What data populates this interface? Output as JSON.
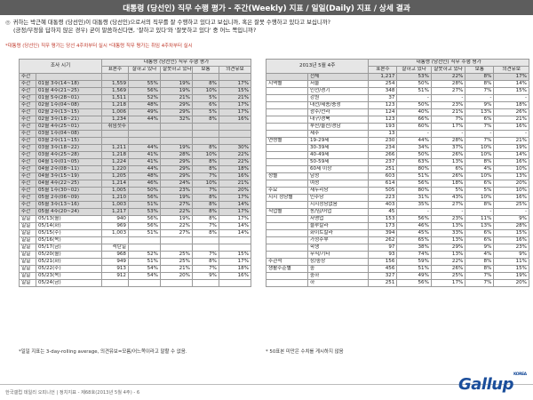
{
  "header": {
    "title": "대통령 (당선인) 직무 수행 평가 - 주간(Weekly) 지표 / 일일(Daily) 지표 / 상세 결과"
  },
  "question": {
    "mark": "◎",
    "line1": "귀하는 박근혜 대통령 (당선인)이 대통령 (당선인)으로서의 직무를 잘 수행하고 있다고 보십니까, 혹은 잘못 수행하고 있다고 보십니까?",
    "line2": "(긍정/부정을 답하지 않은 경우) 굳이 말씀하신다면, '잘하고 있다'와 '잘못하고 있다' 중 어느 쪽입니까?"
  },
  "notes": {
    "line1": "*대통령 (당선인) 직무 평가는 당선 4주차부터 실시  *대통령 직무 평가는 취임 4주차부터 실시"
  },
  "left_table": {
    "group_header": "대통령 (당선인) 직무 수행 평가",
    "col_period": "조사 시기",
    "col_n": "표본수",
    "col_good": "잘하고 있다",
    "col_bad": "잘못하고 있다",
    "col_normal": "보통",
    "col_dk": "의견유보",
    "rows": [
      {
        "t": "주간",
        "d": "",
        "n": "",
        "a": "",
        "b": "",
        "c": "",
        "e": "",
        "g": true
      },
      {
        "t": "주간",
        "d": "01월 3주(14~18)",
        "n": "1,559",
        "a": "55%",
        "b": "19%",
        "c": "8%",
        "e": "17%",
        "g": true
      },
      {
        "t": "주간",
        "d": "01월 4주(21~25)",
        "n": "1,569",
        "a": "56%",
        "b": "19%",
        "c": "10%",
        "e": "15%",
        "g": true
      },
      {
        "t": "주간",
        "d": "01월 5주(28~01)",
        "n": "1,511",
        "a": "52%",
        "b": "21%",
        "c": "5%",
        "e": "21%",
        "g": true
      },
      {
        "t": "주간",
        "d": "02월 1주(04~08)",
        "n": "1,218",
        "a": "48%",
        "b": "29%",
        "c": "6%",
        "e": "17%",
        "g": true
      },
      {
        "t": "주간",
        "d": "02월 2주(13~15)",
        "n": "1,006",
        "a": "49%",
        "b": "29%",
        "c": "5%",
        "e": "17%",
        "g": true
      },
      {
        "t": "주간",
        "d": "02월 3주(18~21)",
        "n": "1,234",
        "a": "44%",
        "b": "32%",
        "c": "8%",
        "e": "16%",
        "g": true
      },
      {
        "t": "주간",
        "d": "02월 4주(25~01)",
        "n": "취임첫주",
        "a": "",
        "b": "",
        "c": "",
        "e": "",
        "g": true
      },
      {
        "t": "주간",
        "d": "03월 1주(04~08)",
        "n": "",
        "a": "",
        "b": "",
        "c": "",
        "e": "",
        "g": true
      },
      {
        "t": "주간",
        "d": "03월 2주(11~15)",
        "n": "",
        "a": "",
        "b": "",
        "c": "",
        "e": "",
        "g": true
      },
      {
        "t": "주간",
        "d": "03월 3주(18~22)",
        "n": "1,211",
        "a": "44%",
        "b": "19%",
        "c": "8%",
        "e": "30%",
        "g": true
      },
      {
        "t": "주간",
        "d": "03월 4주(25~28)",
        "n": "1,218",
        "a": "41%",
        "b": "28%",
        "c": "10%",
        "e": "22%",
        "g": true
      },
      {
        "t": "주간",
        "d": "04월 1주(01~05)",
        "n": "1,224",
        "a": "41%",
        "b": "29%",
        "c": "8%",
        "e": "22%",
        "g": true
      },
      {
        "t": "주간",
        "d": "04월 2주(08~11)",
        "n": "1,220",
        "a": "44%",
        "b": "29%",
        "c": "8%",
        "e": "18%",
        "g": true
      },
      {
        "t": "주간",
        "d": "04월 3주(15~19)",
        "n": "1,205",
        "a": "48%",
        "b": "29%",
        "c": "7%",
        "e": "16%",
        "g": true
      },
      {
        "t": "주간",
        "d": "04월 4주(22~25)",
        "n": "1,214",
        "a": "46%",
        "b": "24%",
        "c": "10%",
        "e": "21%",
        "g": true
      },
      {
        "t": "주간",
        "d": "05월 1주(30~02)",
        "n": "1,005",
        "a": "50%",
        "b": "23%",
        "c": "7%",
        "e": "20%",
        "g": true
      },
      {
        "t": "주간",
        "d": "05월 2주(06~09)",
        "n": "1,210",
        "a": "56%",
        "b": "19%",
        "c": "8%",
        "e": "17%",
        "g": true
      },
      {
        "t": "주간",
        "d": "05월 3주(13~16)",
        "n": "1,003",
        "a": "51%",
        "b": "27%",
        "c": "8%",
        "e": "14%",
        "g": true
      },
      {
        "t": "주간",
        "d": "05월 4주(20~24)",
        "n": "1,217",
        "a": "53%",
        "b": "22%",
        "c": "8%",
        "e": "17%",
        "g": true
      },
      {
        "t": "일일",
        "d": "05/13(월)",
        "n": "940",
        "a": "56%",
        "b": "19%",
        "c": "8%",
        "e": "17%",
        "g": false
      },
      {
        "t": "일일",
        "d": "05/14(화)",
        "n": "969",
        "a": "56%",
        "b": "22%",
        "c": "7%",
        "e": "14%",
        "g": false
      },
      {
        "t": "일일",
        "d": "05/15(수)",
        "n": "1,003",
        "a": "51%",
        "b": "27%",
        "c": "8%",
        "e": "14%",
        "g": false
      },
      {
        "t": "일일",
        "d": "05/16(목)",
        "n": "",
        "a": "",
        "b": "",
        "c": "",
        "e": "",
        "g": false
      },
      {
        "t": "일일",
        "d": "05/17(금)",
        "n": "석탄일",
        "a": "",
        "b": "",
        "c": "",
        "e": "",
        "g": false
      },
      {
        "t": "일일",
        "d": "05/20(월)",
        "n": "968",
        "a": "52%",
        "b": "25%",
        "c": "7%",
        "e": "15%",
        "g": false
      },
      {
        "t": "일일",
        "d": "05/21(화)",
        "n": "949",
        "a": "51%",
        "b": "25%",
        "c": "8%",
        "e": "17%",
        "g": false
      },
      {
        "t": "일일",
        "d": "05/22(수)",
        "n": "913",
        "a": "54%",
        "b": "21%",
        "c": "7%",
        "e": "18%",
        "g": false
      },
      {
        "t": "일일",
        "d": "05/23(목)",
        "n": "912",
        "a": "54%",
        "b": "20%",
        "c": "9%",
        "e": "16%",
        "g": false
      },
      {
        "t": "일일",
        "d": "05/24(금)",
        "n": "",
        "a": "",
        "b": "",
        "c": "",
        "e": "",
        "g": false
      }
    ],
    "footnote": "*일일 지표는 3-day-rolling average, 의견유보=모름/어느쪽이라고 말할 수 없음."
  },
  "right_table": {
    "group_header": "대통령 (당선인) 직무 수행 평가",
    "period": "2013년 5월 4주",
    "col_n": "표본수",
    "col_good": "잘하고 있다",
    "col_bad": "잘못하고 있다",
    "col_normal": "보통",
    "col_dk": "의견유보",
    "rows": [
      {
        "cat": "",
        "sub": "전체",
        "n": "1,217",
        "a": "53%",
        "b": "22%",
        "c": "8%",
        "e": "17%",
        "g": true
      },
      {
        "cat": "지역별",
        "sub": "서울",
        "n": "254",
        "a": "50%",
        "b": "28%",
        "c": "8%",
        "e": "14%"
      },
      {
        "cat": "",
        "sub": "인천/경기",
        "n": "348",
        "a": "51%",
        "b": "27%",
        "c": "7%",
        "e": "15%"
      },
      {
        "cat": "",
        "sub": "강원",
        "n": "37",
        "a": "-",
        "b": "-",
        "c": "-",
        "e": "-"
      },
      {
        "cat": "",
        "sub": "대전/세종/충청",
        "n": "123",
        "a": "50%",
        "b": "23%",
        "c": "9%",
        "e": "18%"
      },
      {
        "cat": "",
        "sub": "광주/전라",
        "n": "124",
        "a": "40%",
        "b": "21%",
        "c": "13%",
        "e": "26%"
      },
      {
        "cat": "",
        "sub": "대구/경북",
        "n": "123",
        "a": "66%",
        "b": "7%",
        "c": "6%",
        "e": "21%"
      },
      {
        "cat": "",
        "sub": "부산/울산/경남",
        "n": "193",
        "a": "60%",
        "b": "17%",
        "c": "7%",
        "e": "16%"
      },
      {
        "cat": "",
        "sub": "제주",
        "n": "13",
        "a": "-",
        "b": "-",
        "c": "-",
        "e": "-"
      },
      {
        "cat": "연령별",
        "sub": "19-29세",
        "n": "230",
        "a": "44%",
        "b": "28%",
        "c": "7%",
        "e": "21%"
      },
      {
        "cat": "",
        "sub": "30-39세",
        "n": "234",
        "a": "34%",
        "b": "37%",
        "c": "10%",
        "e": "19%"
      },
      {
        "cat": "",
        "sub": "40-49세",
        "n": "266",
        "a": "50%",
        "b": "26%",
        "c": "10%",
        "e": "14%"
      },
      {
        "cat": "",
        "sub": "50-59세",
        "n": "237",
        "a": "63%",
        "b": "13%",
        "c": "8%",
        "e": "16%"
      },
      {
        "cat": "",
        "sub": "60세 이상",
        "n": "251",
        "a": "80%",
        "b": "6%",
        "c": "4%",
        "e": "10%"
      },
      {
        "cat": "성별",
        "sub": "남성",
        "n": "603",
        "a": "51%",
        "b": "26%",
        "c": "10%",
        "e": "13%"
      },
      {
        "cat": "",
        "sub": "여성",
        "n": "614",
        "a": "56%",
        "b": "18%",
        "c": "6%",
        "e": "20%"
      },
      {
        "cat": "주요",
        "sub": "새누리당",
        "n": "505",
        "a": "80%",
        "b": "5%",
        "c": "5%",
        "e": "10%"
      },
      {
        "cat": "지지 정당별",
        "sub": "민주당",
        "n": "223",
        "a": "31%",
        "b": "43%",
        "c": "10%",
        "e": "16%"
      },
      {
        "cat": "",
        "sub": "지지정당없음",
        "n": "403",
        "a": "35%",
        "b": "27%",
        "c": "8%",
        "e": "25%"
      },
      {
        "cat": "직업별",
        "sub": "농/임/어업",
        "n": "45",
        "a": "-",
        "b": "-",
        "c": "-",
        "e": "-"
      },
      {
        "cat": "",
        "sub": "자영업",
        "n": "153",
        "a": "56%",
        "b": "23%",
        "c": "11%",
        "e": "9%"
      },
      {
        "cat": "",
        "sub": "블루칼라",
        "n": "173",
        "a": "46%",
        "b": "13%",
        "c": "13%",
        "e": "28%"
      },
      {
        "cat": "",
        "sub": "화이트칼라",
        "n": "394",
        "a": "45%",
        "b": "33%",
        "c": "6%",
        "e": "15%"
      },
      {
        "cat": "",
        "sub": "가정주부",
        "n": "262",
        "a": "65%",
        "b": "13%",
        "c": "6%",
        "e": "16%"
      },
      {
        "cat": "",
        "sub": "학생",
        "n": "97",
        "a": "38%",
        "b": "29%",
        "c": "9%",
        "e": "23%"
      },
      {
        "cat": "",
        "sub": "무직/기타",
        "n": "93",
        "a": "74%",
        "b": "13%",
        "c": "4%",
        "e": "9%"
      },
      {
        "cat": "주관적",
        "sub": "상/중상",
        "n": "156",
        "a": "59%",
        "b": "22%",
        "c": "8%",
        "e": "11%"
      },
      {
        "cat": "생활수준별",
        "sub": "중",
        "n": "456",
        "a": "51%",
        "b": "26%",
        "c": "8%",
        "e": "15%"
      },
      {
        "cat": "",
        "sub": "중하",
        "n": "327",
        "a": "49%",
        "b": "25%",
        "c": "7%",
        "e": "19%"
      },
      {
        "cat": "",
        "sub": "하",
        "n": "251",
        "a": "56%",
        "b": "17%",
        "c": "7%",
        "e": "20%"
      }
    ],
    "footnote": "* 50표본 미만은 수치를 게시하지 않음"
  },
  "footer": {
    "source": "한국갤럽 데일리 오피니언 | 정치지표 - 제68호(2013년 5월 4주) - 6"
  },
  "logo": {
    "text": "Gallup",
    "sub": "KOREA"
  }
}
